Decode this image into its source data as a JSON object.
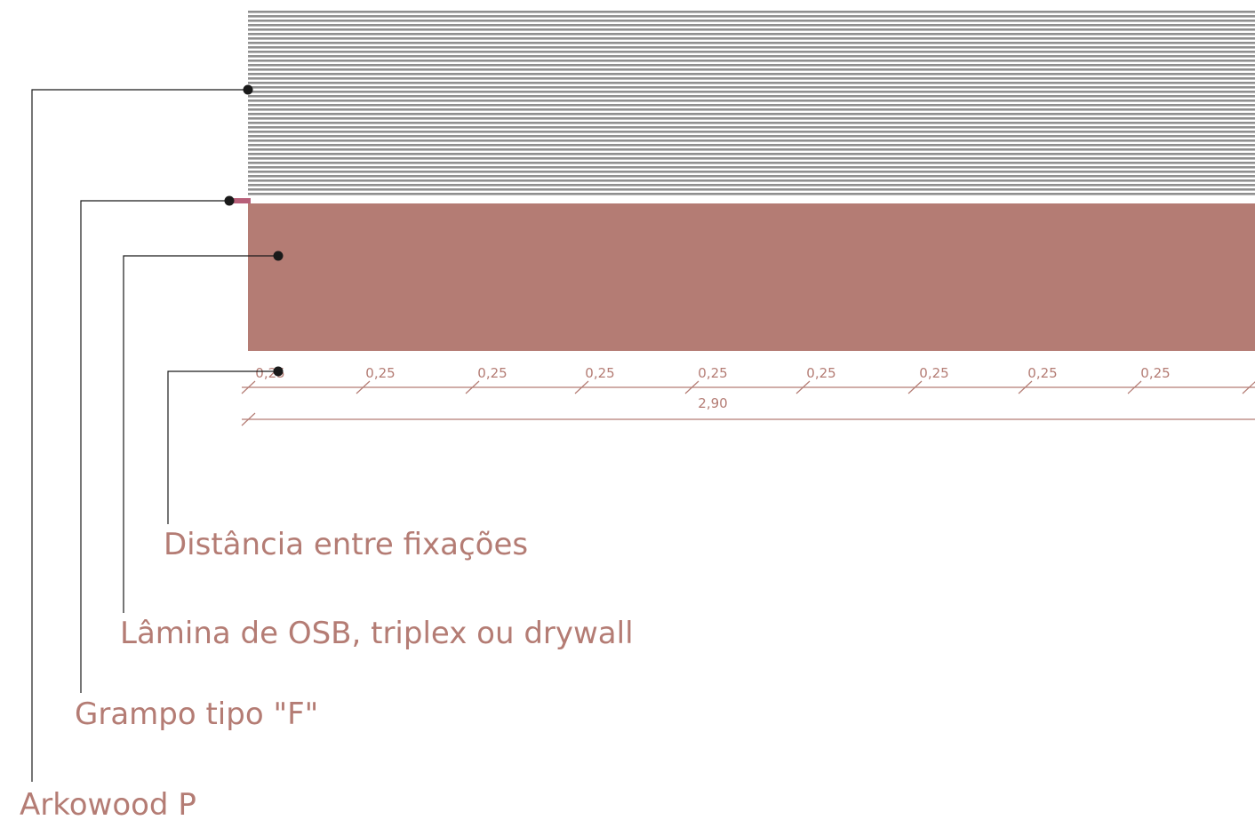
{
  "colors": {
    "accent": "#b47c74",
    "panel": "#b47c74",
    "slats": "#8f8f8f",
    "clip": "#b8607a",
    "leader": "#1a1a1a"
  },
  "callouts": {
    "arkowood": "Arkowood P",
    "grampo": "Grampo tipo \"F\"",
    "lamina": "Lâmina de OSB, triplex ou drywall",
    "distancia": "Distância entre fixações"
  },
  "dimensions": {
    "spacing_labels": [
      "0,25",
      "0,25",
      "0,25",
      "0,25",
      "0,25",
      "0,25",
      "0,25",
      "0,25",
      "0,25"
    ],
    "total_label": "2,90"
  }
}
